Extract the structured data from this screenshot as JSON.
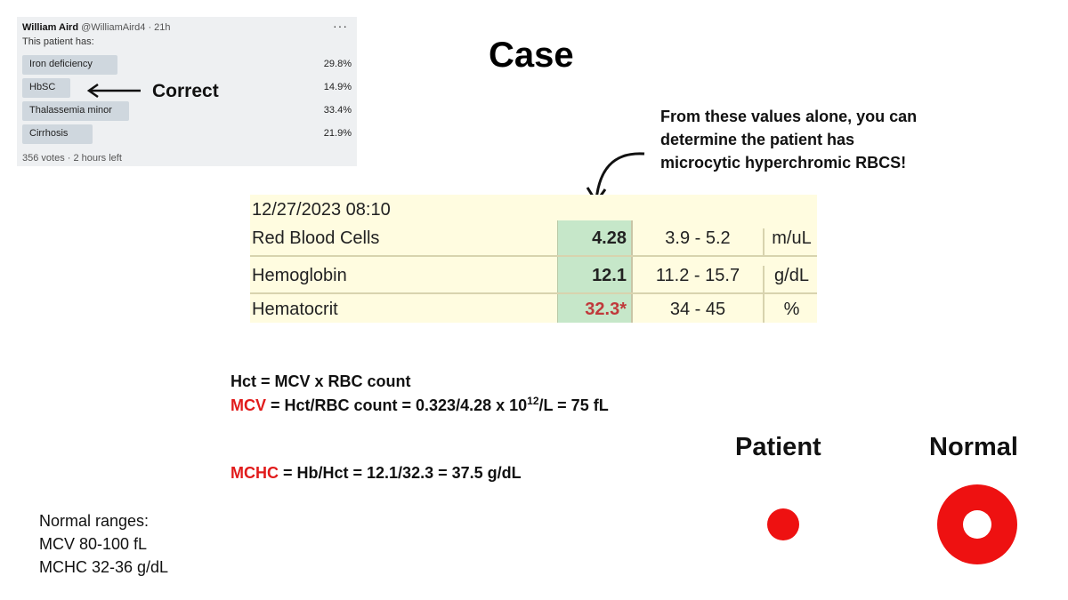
{
  "poll": {
    "author_name": "William Aird",
    "author_handle": "@WilliamAird4 · 21h",
    "more": "···",
    "question": "This patient has:",
    "options": [
      {
        "label": "Iron deficiency",
        "percent": "29.8%",
        "value": 29.8
      },
      {
        "label": "HbSC",
        "percent": "14.9%",
        "value": 14.9
      },
      {
        "label": "Thalassemia minor",
        "percent": "33.4%",
        "value": 33.4
      },
      {
        "label": "Cirrhosis",
        "percent": "21.9%",
        "value": 21.9
      }
    ],
    "footer": "356 votes · 2 hours left"
  },
  "correct_label": "Correct",
  "title": "Case",
  "note": {
    "line1": "From these values alone, you can",
    "line2": "determine the patient has",
    "line3": "microcytic hyperchromic RBCS!"
  },
  "lab": {
    "datetime": "12/27/2023 08:10",
    "rows": [
      {
        "name": "Red Blood Cells",
        "value": "4.28",
        "range": "3.9 - 5.2",
        "unit": "m/uL"
      },
      {
        "name": "Hemoglobin",
        "value": "12.1",
        "range": "11.2 - 15.7",
        "unit": "g/dL"
      },
      {
        "name": "Hematocrit",
        "value": "32.3*",
        "range": "34 - 45",
        "unit": "%"
      }
    ]
  },
  "formulas": {
    "hct": "Hct = MCV x RBC count",
    "mcv_term": "MCV",
    "mcv_rest": " = Hct/RBC count = 0.323/4.28 x 10",
    "mcv_exp": "12",
    "mcv_tail": "/L = 75 fL",
    "mchc_term": "MCHC",
    "mchc_rest": " = Hb/Hct = 12.1/32.3 = 37.5 g/dL"
  },
  "normal_ranges": {
    "heading": "Normal ranges:",
    "mcv": "MCV 80-100 fL",
    "mchc": "MCHC 32-36 g/dL"
  },
  "labels": {
    "patient": "Patient",
    "normal": "Normal"
  },
  "colors": {
    "accent_red": "#e11b1b",
    "poll_bar": "#cfd7de",
    "lab_background": "#fffce0",
    "lab_value_cell": "#c6e7c9",
    "abnormal_value": "#c0393b"
  },
  "icons": {
    "poll_more": "more-horizontal-icon",
    "correct_arrow": "arrow-left-icon",
    "note_arrow": "curved-arrow-down-icon"
  }
}
